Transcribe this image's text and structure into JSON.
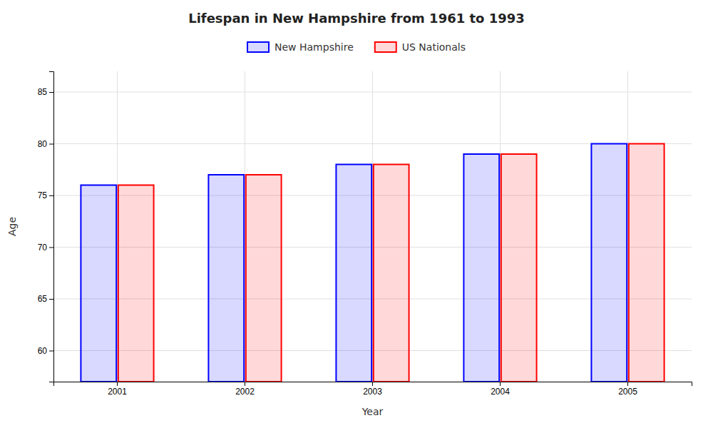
{
  "chart_data": {
    "type": "bar",
    "title": "Lifespan in New Hampshire from 1961 to 1993",
    "xlabel": "Year",
    "ylabel": "Age",
    "categories": [
      "2001",
      "2002",
      "2003",
      "2004",
      "2005"
    ],
    "series": [
      {
        "name": "New Hampshire",
        "color": "#0000ff",
        "values": [
          76,
          77,
          78,
          79,
          80
        ]
      },
      {
        "name": "US Nationals",
        "color": "#ff0000",
        "values": [
          76,
          77,
          78,
          79,
          80
        ]
      }
    ],
    "ylim": [
      57,
      87
    ],
    "yticks": [
      60,
      65,
      70,
      75,
      80,
      85
    ],
    "grid": true,
    "legend": "top"
  }
}
